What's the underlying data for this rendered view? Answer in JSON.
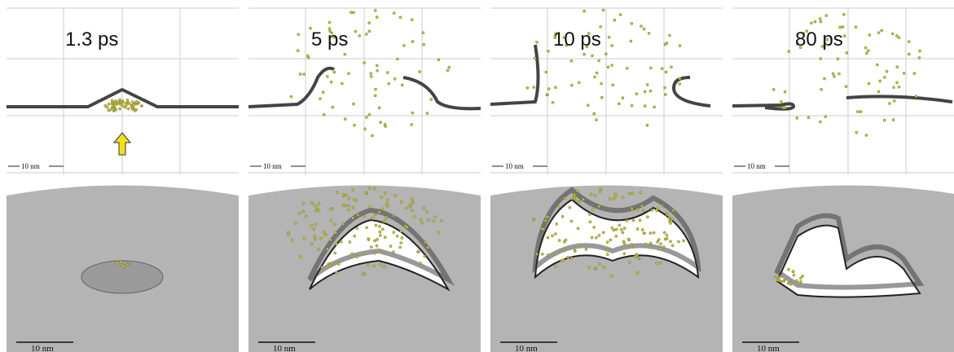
{
  "panels": [
    {
      "time": "1.3 ps",
      "top_scale": "10 nm",
      "bottom_scale": "10 nm"
    },
    {
      "time": "5 ps",
      "top_scale": "10 nm",
      "bottom_scale": "10 nm"
    },
    {
      "time": "10 ps",
      "top_scale": "10 nm",
      "bottom_scale": "10 nm"
    },
    {
      "time": "80 ps",
      "top_scale": "10 nm",
      "bottom_scale": "10 nm"
    }
  ]
}
